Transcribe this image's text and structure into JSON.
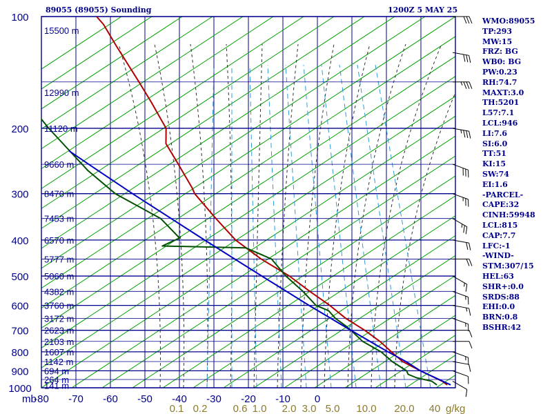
{
  "header": {
    "station": "89055 (89055) Sounding",
    "time": "1200Z  5 MAY 25"
  },
  "stats": [
    "WMO:89055",
    "TP:293",
    "MW:15",
    "FRZ: BG",
    "WB0: BG",
    "PW:0.23",
    "RH:74.7",
    "MAXT:3.0",
    "TH:5201",
    "L57:7.1",
    "LCL:946",
    "LI:7.6",
    "SI:6.0",
    "TT:51",
    "KI:15",
    "SW:74",
    "EI:1.6",
    "-PARCEL-",
    "CAPE:32",
    "CINH:59948",
    "LCL:815",
    "CAP:7.7",
    "LFC:-1",
    "-WIND-",
    "STM:307/15",
    "HEL:63",
    "SHR+:0.0",
    "SRDS:88",
    "EHI:0.0",
    "BRN:0.8",
    "BSHR:42"
  ],
  "colors": {
    "frame": "#00008b",
    "isotherm": "#00008b",
    "dry_adiabat": "#00a000",
    "moist_adiabat": "#303030",
    "mixing_ratio": "#2f9bd8",
    "temperature": "#b00000",
    "dewpoint": "#005000",
    "parcel": "#0000c0",
    "wind": "#000000",
    "axis_label": "#00008b",
    "mixing_label": "#8b7b2b"
  },
  "chart_data": {
    "type": "line",
    "title": "89055 (89055) Sounding",
    "xlabel": "",
    "ylabel": "mb",
    "log_y": true,
    "ylim": [
      1000,
      100
    ],
    "xlim": [
      -80,
      0
    ],
    "grid": true,
    "y_ticks": [
      "100",
      "200",
      "300",
      "400",
      "500",
      "600",
      "700",
      "800",
      "900",
      "1000"
    ],
    "x_ticks": [
      "-80",
      "-70",
      "-60",
      "-50",
      "-40",
      "-30",
      "-20",
      "-10",
      "0"
    ],
    "x_tick_values": [
      -80,
      -70,
      -60,
      -50,
      -40,
      -30,
      -20,
      -10,
      0
    ],
    "ylabel_unit": "mb",
    "height_labels": [
      {
        "p": 109,
        "text": "15500 m"
      },
      {
        "p": 160,
        "text": "12990 m"
      },
      {
        "p": 200,
        "text": "11120 m"
      },
      {
        "p": 250,
        "text": "9660 m"
      },
      {
        "p": 300,
        "text": "8470 m"
      },
      {
        "p": 350,
        "text": "7453 m"
      },
      {
        "p": 400,
        "text": "6570 m"
      },
      {
        "p": 450,
        "text": "5777 m"
      },
      {
        "p": 500,
        "text": "5060 m"
      },
      {
        "p": 550,
        "text": "4382 m"
      },
      {
        "p": 600,
        "text": "3760 m"
      },
      {
        "p": 650,
        "text": "3172 m"
      },
      {
        "p": 700,
        "text": "2623 m"
      },
      {
        "p": 750,
        "text": "2103 m"
      },
      {
        "p": 800,
        "text": "1607 m"
      },
      {
        "p": 850,
        "text": "1142 m"
      },
      {
        "p": 900,
        "text": "694 m"
      },
      {
        "p": 950,
        "text": "264 m"
      },
      {
        "p": 985,
        "text": "141 m"
      }
    ],
    "mixing_ratio_labels": [
      "0.1",
      "0.2",
      "0.6",
      "1.0",
      "2.0",
      "3.0",
      "5.0",
      "10.0",
      "20.0",
      "40"
    ],
    "mixing_ratio_unit": "g/kg",
    "series": [
      {
        "key": "temperature",
        "points": [
          [
            982,
            -2
          ],
          [
            960,
            -3
          ],
          [
            935,
            -5
          ],
          [
            900,
            -8
          ],
          [
            850,
            -12
          ],
          [
            800,
            -14
          ],
          [
            750,
            -16
          ],
          [
            700,
            -19
          ],
          [
            650,
            -23
          ],
          [
            600,
            -26
          ],
          [
            550,
            -30
          ],
          [
            500,
            -34
          ],
          [
            450,
            -40
          ],
          [
            400,
            -45
          ],
          [
            350,
            -48
          ],
          [
            300,
            -51
          ],
          [
            290,
            -51
          ],
          [
            250,
            -52
          ],
          [
            220,
            -53
          ],
          [
            200,
            -51
          ],
          [
            170,
            -52
          ],
          [
            150,
            -53
          ],
          [
            120,
            -55
          ],
          [
            105,
            -56
          ],
          [
            100,
            -57
          ]
        ]
      },
      {
        "key": "dewpoint",
        "points": [
          [
            982,
            -5
          ],
          [
            960,
            -6
          ],
          [
            940,
            -10
          ],
          [
            920,
            -12
          ],
          [
            900,
            -12
          ],
          [
            850,
            -15
          ],
          [
            800,
            -17
          ],
          [
            750,
            -21
          ],
          [
            700,
            -23
          ],
          [
            680,
            -24
          ],
          [
            650,
            -26
          ],
          [
            620,
            -27
          ],
          [
            600,
            -30
          ],
          [
            550,
            -32
          ],
          [
            500,
            -35
          ],
          [
            450,
            -37
          ],
          [
            420,
            -43
          ],
          [
            415,
            -67
          ],
          [
            395,
            -61
          ],
          [
            350,
            -64
          ],
          [
            300,
            -74
          ],
          [
            260,
            -79
          ],
          [
            200,
            -85
          ],
          [
            150,
            -90
          ],
          [
            130,
            -92
          ]
        ]
      },
      {
        "key": "parcel",
        "points": [
          [
            982,
            -1
          ],
          [
            900,
            -8
          ],
          [
            850,
            -11
          ],
          [
            800,
            -15
          ],
          [
            700,
            -23
          ],
          [
            600,
            -32
          ],
          [
            500,
            -42
          ],
          [
            400,
            -54
          ],
          [
            300,
            -69
          ],
          [
            250,
            -78
          ],
          [
            230,
            -82
          ]
        ]
      }
    ],
    "winds": [
      {
        "p": 960,
        "dir": 300,
        "spd": 10
      },
      {
        "p": 900,
        "dir": 290,
        "spd": 10
      },
      {
        "p": 850,
        "dir": 280,
        "spd": 10
      },
      {
        "p": 800,
        "dir": 290,
        "spd": 15
      },
      {
        "p": 750,
        "dir": 270,
        "spd": 10
      },
      {
        "p": 700,
        "dir": 270,
        "spd": 10
      },
      {
        "p": 650,
        "dir": 290,
        "spd": 15
      },
      {
        "p": 600,
        "dir": 280,
        "spd": 15
      },
      {
        "p": 550,
        "dir": 290,
        "spd": 15
      },
      {
        "p": 500,
        "dir": 300,
        "spd": 15
      },
      {
        "p": 450,
        "dir": 270,
        "spd": 20
      },
      {
        "p": 400,
        "dir": 280,
        "spd": 20
      },
      {
        "p": 350,
        "dir": 300,
        "spd": 25
      },
      {
        "p": 300,
        "dir": 290,
        "spd": 25
      },
      {
        "p": 250,
        "dir": 290,
        "spd": 30
      },
      {
        "p": 200,
        "dir": 280,
        "spd": 35
      },
      {
        "p": 150,
        "dir": 270,
        "spd": 35
      },
      {
        "p": 125,
        "dir": 280,
        "spd": 30
      },
      {
        "p": 100,
        "dir": 270,
        "spd": 30
      }
    ]
  }
}
